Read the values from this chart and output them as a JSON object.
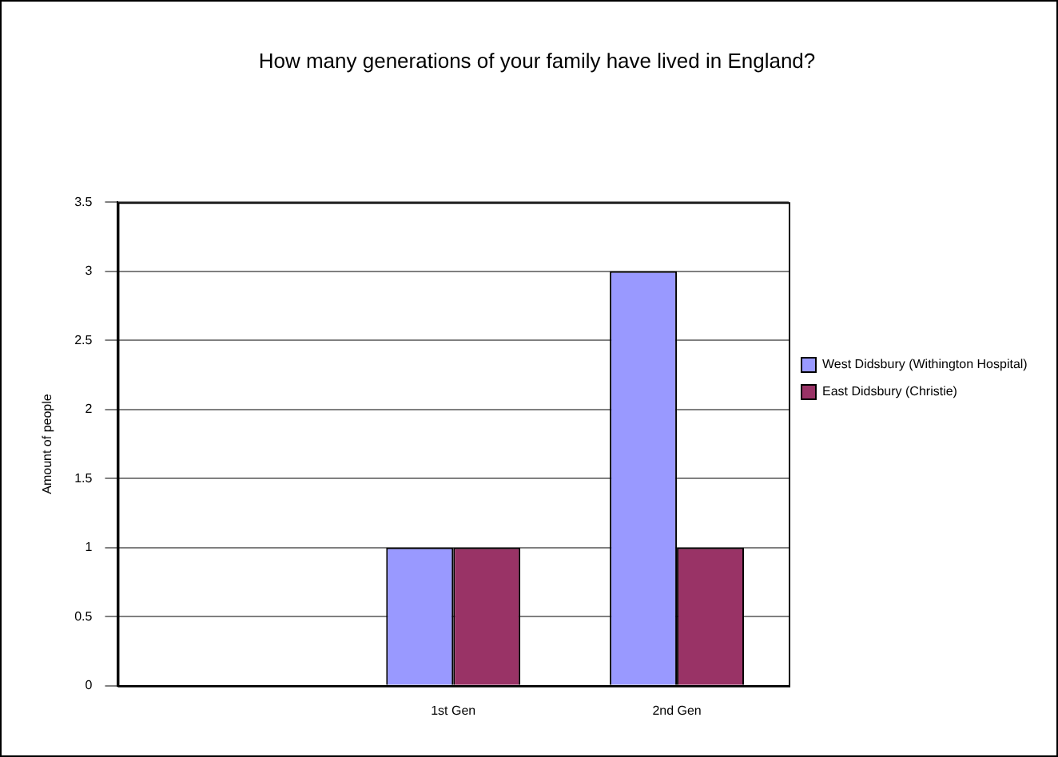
{
  "chart_data": {
    "type": "bar",
    "title": "How many generations of your family have lived in England?",
    "ylabel": "Amount of people",
    "categories": [
      null,
      "1st Gen",
      "2nd Gen"
    ],
    "series": [
      {
        "name": "West Didsbury (Withington Hospital)",
        "color": "#9999ff",
        "values": [
          null,
          1,
          3
        ]
      },
      {
        "name": "East Didsbury (Christie)",
        "color": "#993366",
        "values": [
          null,
          1,
          1
        ]
      }
    ],
    "ylim": [
      0,
      3.5
    ],
    "yticks": [
      0,
      0.5,
      1,
      1.5,
      2,
      2.5,
      3,
      3.5
    ],
    "grid": "y",
    "legend": "right"
  }
}
